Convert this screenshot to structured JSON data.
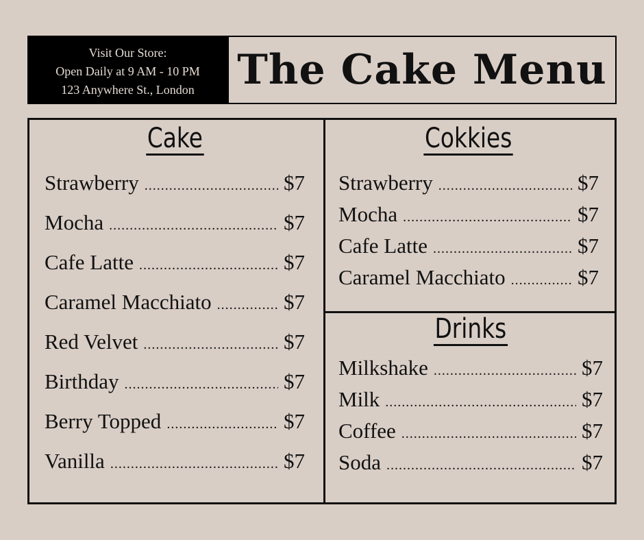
{
  "store": {
    "line1": "Visit Our Store:",
    "line2": "Open Daily at 9 AM - 10 PM",
    "line3": "123 Anywhere St., London"
  },
  "title": "The Cake Menu",
  "sections": [
    {
      "heading": "Cake",
      "items": [
        {
          "name": "Strawberry",
          "price": "$7"
        },
        {
          "name": "Mocha",
          "price": "$7"
        },
        {
          "name": "Cafe Latte",
          "price": "$7"
        },
        {
          "name": "Caramel Macchiato",
          "price": "$7"
        },
        {
          "name": "Red Velvet",
          "price": "$7"
        },
        {
          "name": "Birthday",
          "price": "$7"
        },
        {
          "name": "Berry Topped",
          "price": "$7"
        },
        {
          "name": "Vanilla",
          "price": "$7"
        }
      ]
    },
    {
      "heading": "Cokkies",
      "items": [
        {
          "name": "Strawberry",
          "price": "$7"
        },
        {
          "name": "Mocha",
          "price": "$7"
        },
        {
          "name": "Cafe Latte",
          "price": "$7"
        },
        {
          "name": "Caramel Macchiato",
          "price": "$7"
        }
      ]
    },
    {
      "heading": "Drinks",
      "items": [
        {
          "name": "Milkshake",
          "price": "$7"
        },
        {
          "name": "Milk",
          "price": "$7"
        },
        {
          "name": "Coffee",
          "price": "$7"
        },
        {
          "name": "Soda",
          "price": "$7"
        }
      ]
    }
  ]
}
